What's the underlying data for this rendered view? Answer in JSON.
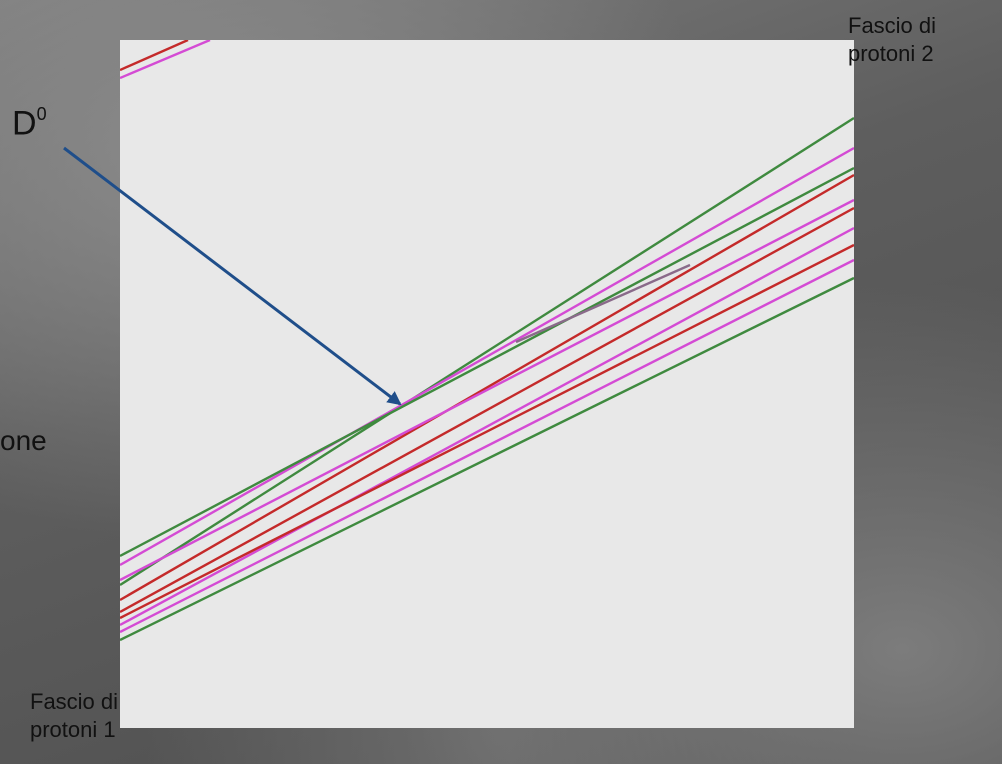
{
  "labels": {
    "beam_2_line1": "Fascio di",
    "beam_2_line2": "protoni 2",
    "beam_1_line1": "Fascio di",
    "beam_1_line2": "protoni 1",
    "d0_base": "D",
    "d0_sup": "0",
    "cut_text": "one"
  },
  "colors": {
    "arrow": "#1f4e8a",
    "track_magenta": "#d44bd4",
    "track_red": "#c42a2a",
    "track_green": "#3f8a3f",
    "panel": "#e8e8e8"
  }
}
